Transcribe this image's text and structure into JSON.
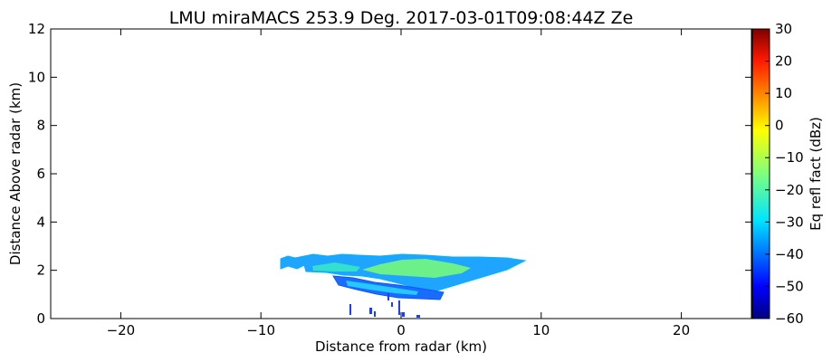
{
  "chart_data": {
    "type": "heatmap",
    "title": "LMU miraMACS 253.9 Deg. 2017-03-01T09:08:44Z  Ze",
    "xlabel": "Distance from radar (km)",
    "ylabel": "Distance Above radar  (km)",
    "xlim": [
      -25,
      25
    ],
    "ylim": [
      0,
      12
    ],
    "xticks": [
      -20,
      -10,
      0,
      10,
      20
    ],
    "yticks": [
      0,
      2,
      4,
      6,
      8,
      10,
      12
    ],
    "grid": false,
    "colorbar": {
      "label": "Eq refl fact (dBz)",
      "range": [
        -60,
        30
      ],
      "ticks": [
        30,
        20,
        10,
        0,
        -10,
        -20,
        -30,
        -40,
        -50,
        -60
      ],
      "colormap": "jet"
    },
    "echo_layers": [
      {
        "name": "upper",
        "x_range": [
          -8.5,
          9
        ],
        "base_km": 1.8,
        "top_km": 2.6,
        "ze_dbz": -25
      },
      {
        "name": "lower",
        "x_range": [
          -5,
          3
        ],
        "base_km": 0.8,
        "top_km": 1.8,
        "ze_dbz": -35
      },
      {
        "name": "near-ground speckle",
        "x_range": [
          -4,
          1
        ],
        "base_km": 0,
        "top_km": 0.6,
        "ze_dbz": -45
      }
    ]
  }
}
